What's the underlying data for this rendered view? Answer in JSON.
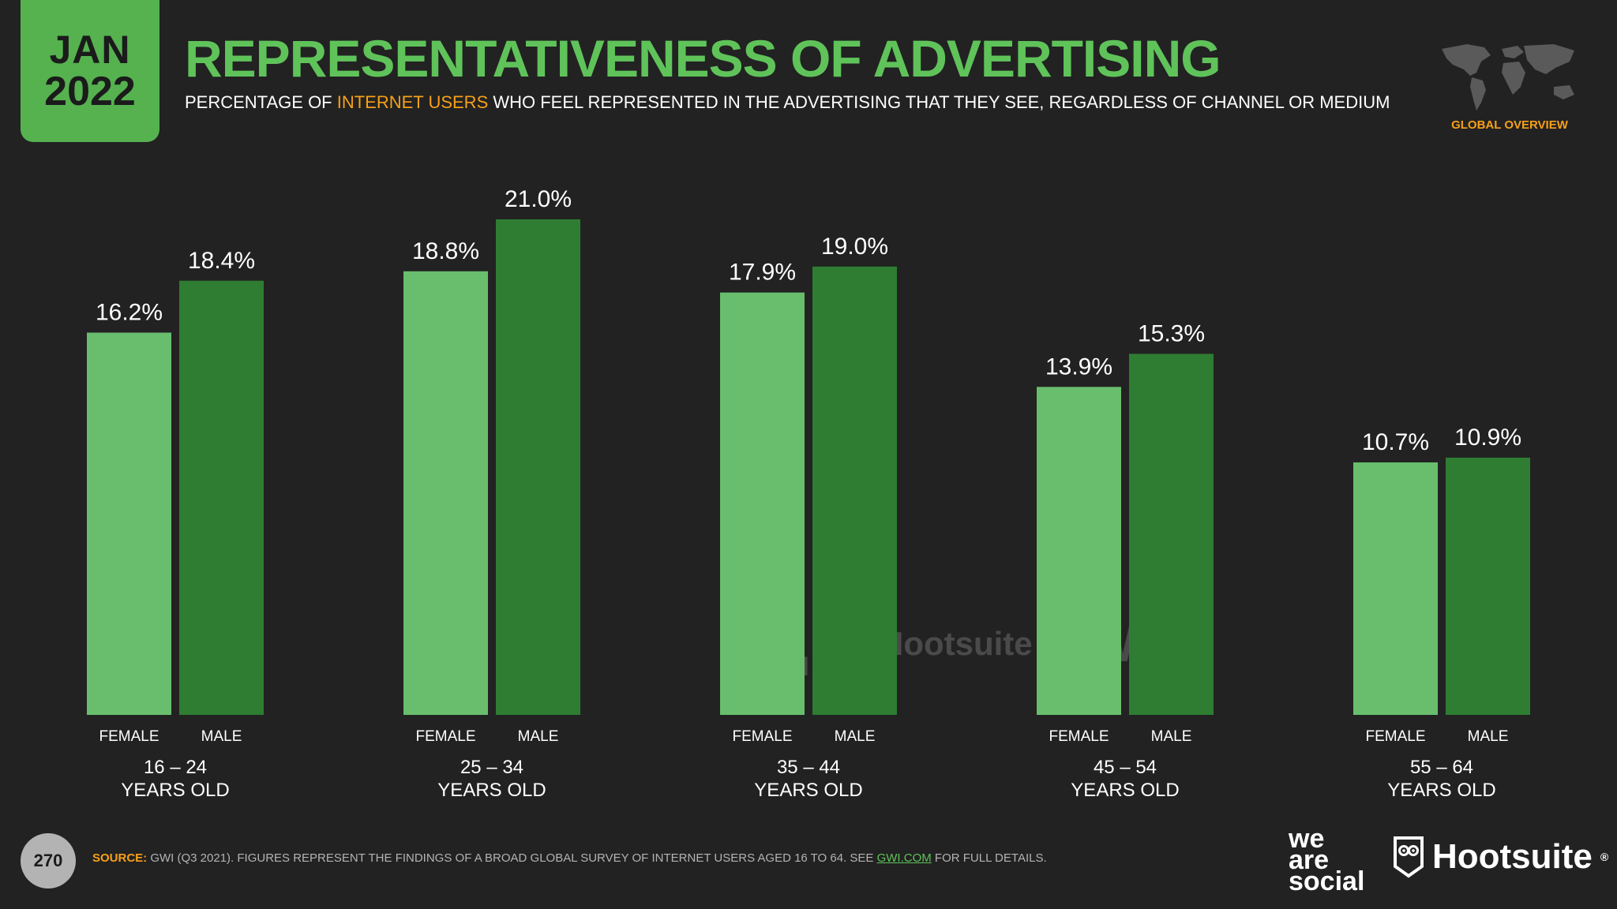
{
  "badge": {
    "month": "JAN",
    "year": "2022"
  },
  "title": "REPRESENTATIVENESS OF ADVERTISING",
  "subtitle": {
    "before": "PERCENTAGE OF ",
    "highlight": "INTERNET USERS",
    "after": " WHO FEEL REPRESENTED IN THE ADVERTISING THAT THEY SEE, REGARDLESS OF CHANNEL OR MEDIUM"
  },
  "region_label": "GLOBAL OVERVIEW",
  "map_icon": "world-map-icon",
  "colors": {
    "accent": "#5fc35a",
    "female": "#68be6d",
    "male": "#2e7d32",
    "highlight": "#f6a01a",
    "background": "#222222"
  },
  "chart_data": {
    "type": "bar",
    "categories": [
      "16 – 24 YEARS OLD",
      "25 – 34 YEARS OLD",
      "35 – 44 YEARS OLD",
      "45 – 54 YEARS OLD",
      "55 – 64 YEARS OLD"
    ],
    "category_lines": [
      [
        "16 – 24",
        "YEARS OLD"
      ],
      [
        "25 – 34",
        "YEARS OLD"
      ],
      [
        "35 – 44",
        "YEARS OLD"
      ],
      [
        "45 – 54",
        "YEARS OLD"
      ],
      [
        "55 – 64",
        "YEARS OLD"
      ]
    ],
    "series": [
      {
        "name": "FEMALE",
        "values": [
          16.2,
          18.8,
          17.9,
          13.9,
          10.7
        ],
        "labels": [
          "16.2%",
          "18.8%",
          "17.9%",
          "13.9%",
          "10.7%"
        ]
      },
      {
        "name": "MALE",
        "values": [
          18.4,
          21.0,
          19.0,
          15.3,
          10.9
        ],
        "labels": [
          "18.4%",
          "21.0%",
          "19.0%",
          "15.3%",
          "10.9%"
        ]
      }
    ],
    "ylim": [
      0,
      21
    ],
    "grid": false
  },
  "watermarks": {
    "wearesocial": [
      "we",
      "are",
      "social"
    ],
    "hootsuite": "Hootsuite",
    "gwi": "GWI."
  },
  "footer": {
    "page_number": "270",
    "source_label": "SOURCE:",
    "source_text": " GWI (Q3 2021). FIGURES REPRESENT THE FINDINGS OF A BROAD GLOBAL SURVEY OF INTERNET USERS AGED 16 TO 64. SEE ",
    "source_link": "GWI.COM",
    "source_end": " FOR FULL DETAILS.",
    "logo_wearesocial": [
      "we",
      "are",
      "social"
    ],
    "logo_hootsuite": "Hootsuite",
    "logo_hootsuite_mark": "®",
    "owl_icon": "hootsuite-owl-icon"
  }
}
